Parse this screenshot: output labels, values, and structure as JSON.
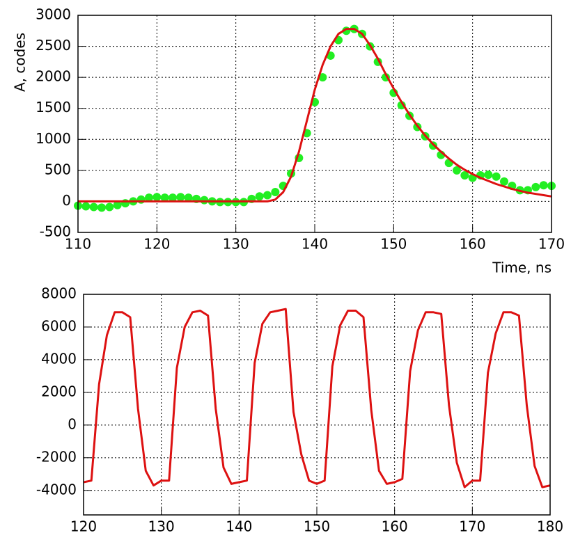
{
  "chart_data": [
    {
      "type": "scatter",
      "xlabel": "Time, ns",
      "ylabel": "A, codes",
      "xlim": [
        110,
        170
      ],
      "xticks": [
        110,
        120,
        130,
        140,
        150,
        160,
        170
      ],
      "ylim": [
        -500,
        3000
      ],
      "yticks": [
        -500,
        0,
        500,
        1000,
        1500,
        2000,
        2500,
        3000
      ],
      "grid": true,
      "x": [
        110,
        111,
        112,
        113,
        114,
        115,
        116,
        117,
        118,
        119,
        120,
        121,
        122,
        123,
        124,
        125,
        126,
        127,
        128,
        129,
        130,
        131,
        132,
        133,
        134,
        135,
        136,
        137,
        138,
        139,
        140,
        141,
        142,
        143,
        144,
        145,
        146,
        147,
        148,
        149,
        150,
        151,
        152,
        153,
        154,
        155,
        156,
        157,
        158,
        159,
        160,
        161,
        162,
        163,
        164,
        165,
        166,
        167,
        168,
        169,
        170
      ],
      "series": [
        {
          "type": "scatter",
          "color": "#22ee22",
          "values": [
            -70,
            -80,
            -90,
            -100,
            -90,
            -60,
            -30,
            0,
            30,
            60,
            70,
            60,
            60,
            70,
            60,
            40,
            20,
            0,
            -10,
            -10,
            -10,
            -10,
            40,
            80,
            100,
            150,
            250,
            450,
            700,
            1100,
            1600,
            2000,
            2350,
            2600,
            2750,
            2780,
            2700,
            2500,
            2250,
            2000,
            1750,
            1550,
            1380,
            1200,
            1050,
            900,
            750,
            620,
            500,
            420,
            380,
            420,
            430,
            400,
            320,
            250,
            180,
            180,
            230,
            260,
            250
          ]
        },
        {
          "type": "line",
          "color": "#dd1111",
          "values": [
            0,
            0,
            0,
            0,
            0,
            0,
            0,
            0,
            0,
            0,
            0,
            0,
            0,
            0,
            0,
            0,
            0,
            0,
            0,
            0,
            0,
            0,
            0,
            0,
            0,
            30,
            150,
            400,
            800,
            1300,
            1800,
            2200,
            2500,
            2700,
            2780,
            2780,
            2700,
            2520,
            2300,
            2050,
            1820,
            1600,
            1400,
            1220,
            1060,
            920,
            800,
            690,
            590,
            510,
            440,
            380,
            330,
            280,
            240,
            200,
            170,
            140,
            120,
            100,
            80
          ]
        }
      ]
    },
    {
      "type": "line",
      "xlim": [
        120,
        180
      ],
      "xticks": [
        120,
        130,
        140,
        150,
        160,
        170,
        180
      ],
      "ylim": [
        -5500,
        8000
      ],
      "yticks": [
        -4000,
        -2000,
        0,
        2000,
        4000,
        6000,
        8000
      ],
      "grid": true,
      "x": [
        120,
        121,
        122,
        123,
        124,
        125,
        126,
        127,
        128,
        129,
        130,
        131,
        132,
        133,
        134,
        135,
        136,
        137,
        138,
        139,
        140,
        141,
        142,
        143,
        144,
        145,
        146,
        147,
        148,
        149,
        150,
        151,
        152,
        153,
        154,
        155,
        156,
        157,
        158,
        159,
        160,
        161,
        162,
        163,
        164,
        165,
        166,
        167,
        168,
        169,
        170,
        171,
        172,
        173,
        174,
        175,
        176,
        177,
        178,
        179,
        180
      ],
      "series": [
        {
          "type": "line",
          "color": "#dd1111",
          "values": [
            -3500,
            -3400,
            2500,
            5500,
            6900,
            6900,
            6600,
            1000,
            -2800,
            -3700,
            -3400,
            -3400,
            3500,
            6000,
            6900,
            7000,
            6700,
            1000,
            -2600,
            -3600,
            -3500,
            -3400,
            3800,
            6200,
            6900,
            7000,
            7100,
            800,
            -1800,
            -3400,
            -3600,
            -3400,
            3600,
            6100,
            7000,
            7000,
            6600,
            900,
            -2800,
            -3600,
            -3500,
            -3300,
            3300,
            5800,
            6900,
            6900,
            6800,
            1200,
            -2300,
            -3800,
            -3400,
            -3400,
            3200,
            5600,
            6900,
            6900,
            6700,
            1200,
            -2500,
            -3800,
            -3700
          ]
        }
      ]
    }
  ]
}
